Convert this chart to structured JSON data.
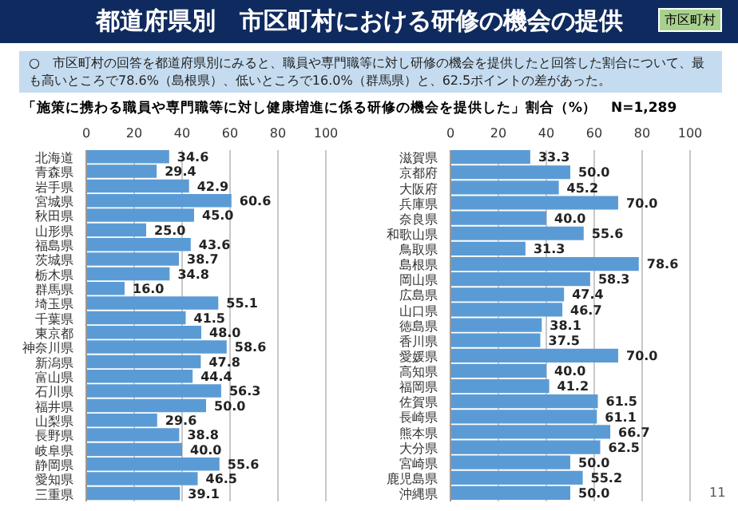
{
  "chart_data": [
    {
      "type": "bar",
      "orientation": "horizontal",
      "title": "都道府県別　市区町村における研修の機会の提供",
      "subtitle": "○　市区町村の回答を都道府県別にみると、職員や専門職等に対し研修の機会を提供したと回答した割合について、最も高いところで78.6%（島根県）、低いところで16.0%（群馬県）と、62.5ポイントの差があった。",
      "annotations": [
        "「施策に携わる職員や専門職等に対し健康増進に係る研修の機会を提供した」割合（%）　N=1,289",
        "市区町村",
        "11"
      ],
      "categories": [
        "北海道",
        "青森県",
        "岩手県",
        "宮城県",
        "秋田県",
        "山形県",
        "福島県",
        "茨城県",
        "栃木県",
        "群馬県",
        "埼玉県",
        "千葉県",
        "東京都",
        "神奈川県",
        "新潟県",
        "富山県",
        "石川県",
        "福井県",
        "山梨県",
        "長野県",
        "岐阜県",
        "静岡県",
        "愛知県",
        "三重県"
      ],
      "values": [
        34.6,
        29.4,
        42.9,
        60.6,
        45.0,
        25.0,
        43.6,
        38.7,
        34.8,
        16.0,
        55.1,
        41.5,
        48.0,
        58.6,
        47.8,
        44.4,
        56.3,
        50.0,
        29.6,
        38.8,
        40.0,
        55.6,
        46.5,
        39.1
      ],
      "value_labels": [
        "34.6",
        "29.4",
        "42.9",
        "60.6",
        "45.0",
        "25.0",
        "43.6",
        "38.7",
        "34.8",
        "16.0",
        "55.1",
        "41.5",
        "48.0",
        "58.6",
        "47.8",
        "44.4",
        "56.3",
        "50.0",
        "29.6",
        "38.8",
        "40.0",
        "55.6",
        "46.5",
        "39.1"
      ],
      "color": "#5b9bd5",
      "xlim": [
        0,
        100
      ],
      "xticks": [
        0,
        20,
        40,
        60,
        80,
        100
      ],
      "grid": "x"
    },
    {
      "type": "bar",
      "orientation": "horizontal",
      "categories": [
        "滋賀県",
        "京都府",
        "大阪府",
        "兵庫県",
        "奈良県",
        "和歌山県",
        "鳥取県",
        "島根県",
        "岡山県",
        "広島県",
        "山口県",
        "徳島県",
        "香川県",
        "愛媛県",
        "高知県",
        "福岡県",
        "佐賀県",
        "長崎県",
        "熊本県",
        "大分県",
        "宮崎県",
        "鹿児島県",
        "沖縄県"
      ],
      "values": [
        33.3,
        50.0,
        45.2,
        70.0,
        40.0,
        55.6,
        31.3,
        78.6,
        58.3,
        47.4,
        46.7,
        38.1,
        37.5,
        70.0,
        40.0,
        41.2,
        61.5,
        61.1,
        66.7,
        62.5,
        50.0,
        55.2,
        50.0
      ],
      "value_labels": [
        "33.3",
        "50.0",
        "45.2",
        "70.0",
        "40.0",
        "55.6",
        "31.3",
        "78.6",
        "58.3",
        "47.4",
        "46.7",
        "38.1",
        "37.5",
        "70.0",
        "40.0",
        "41.2",
        "61.5",
        "61.1",
        "66.7",
        "62.5",
        "50.0",
        "55.2",
        "50.0"
      ],
      "color": "#5b9bd5",
      "xlim": [
        0,
        100
      ],
      "xticks": [
        0,
        20,
        40,
        60,
        80,
        100
      ],
      "grid": "x"
    }
  ]
}
